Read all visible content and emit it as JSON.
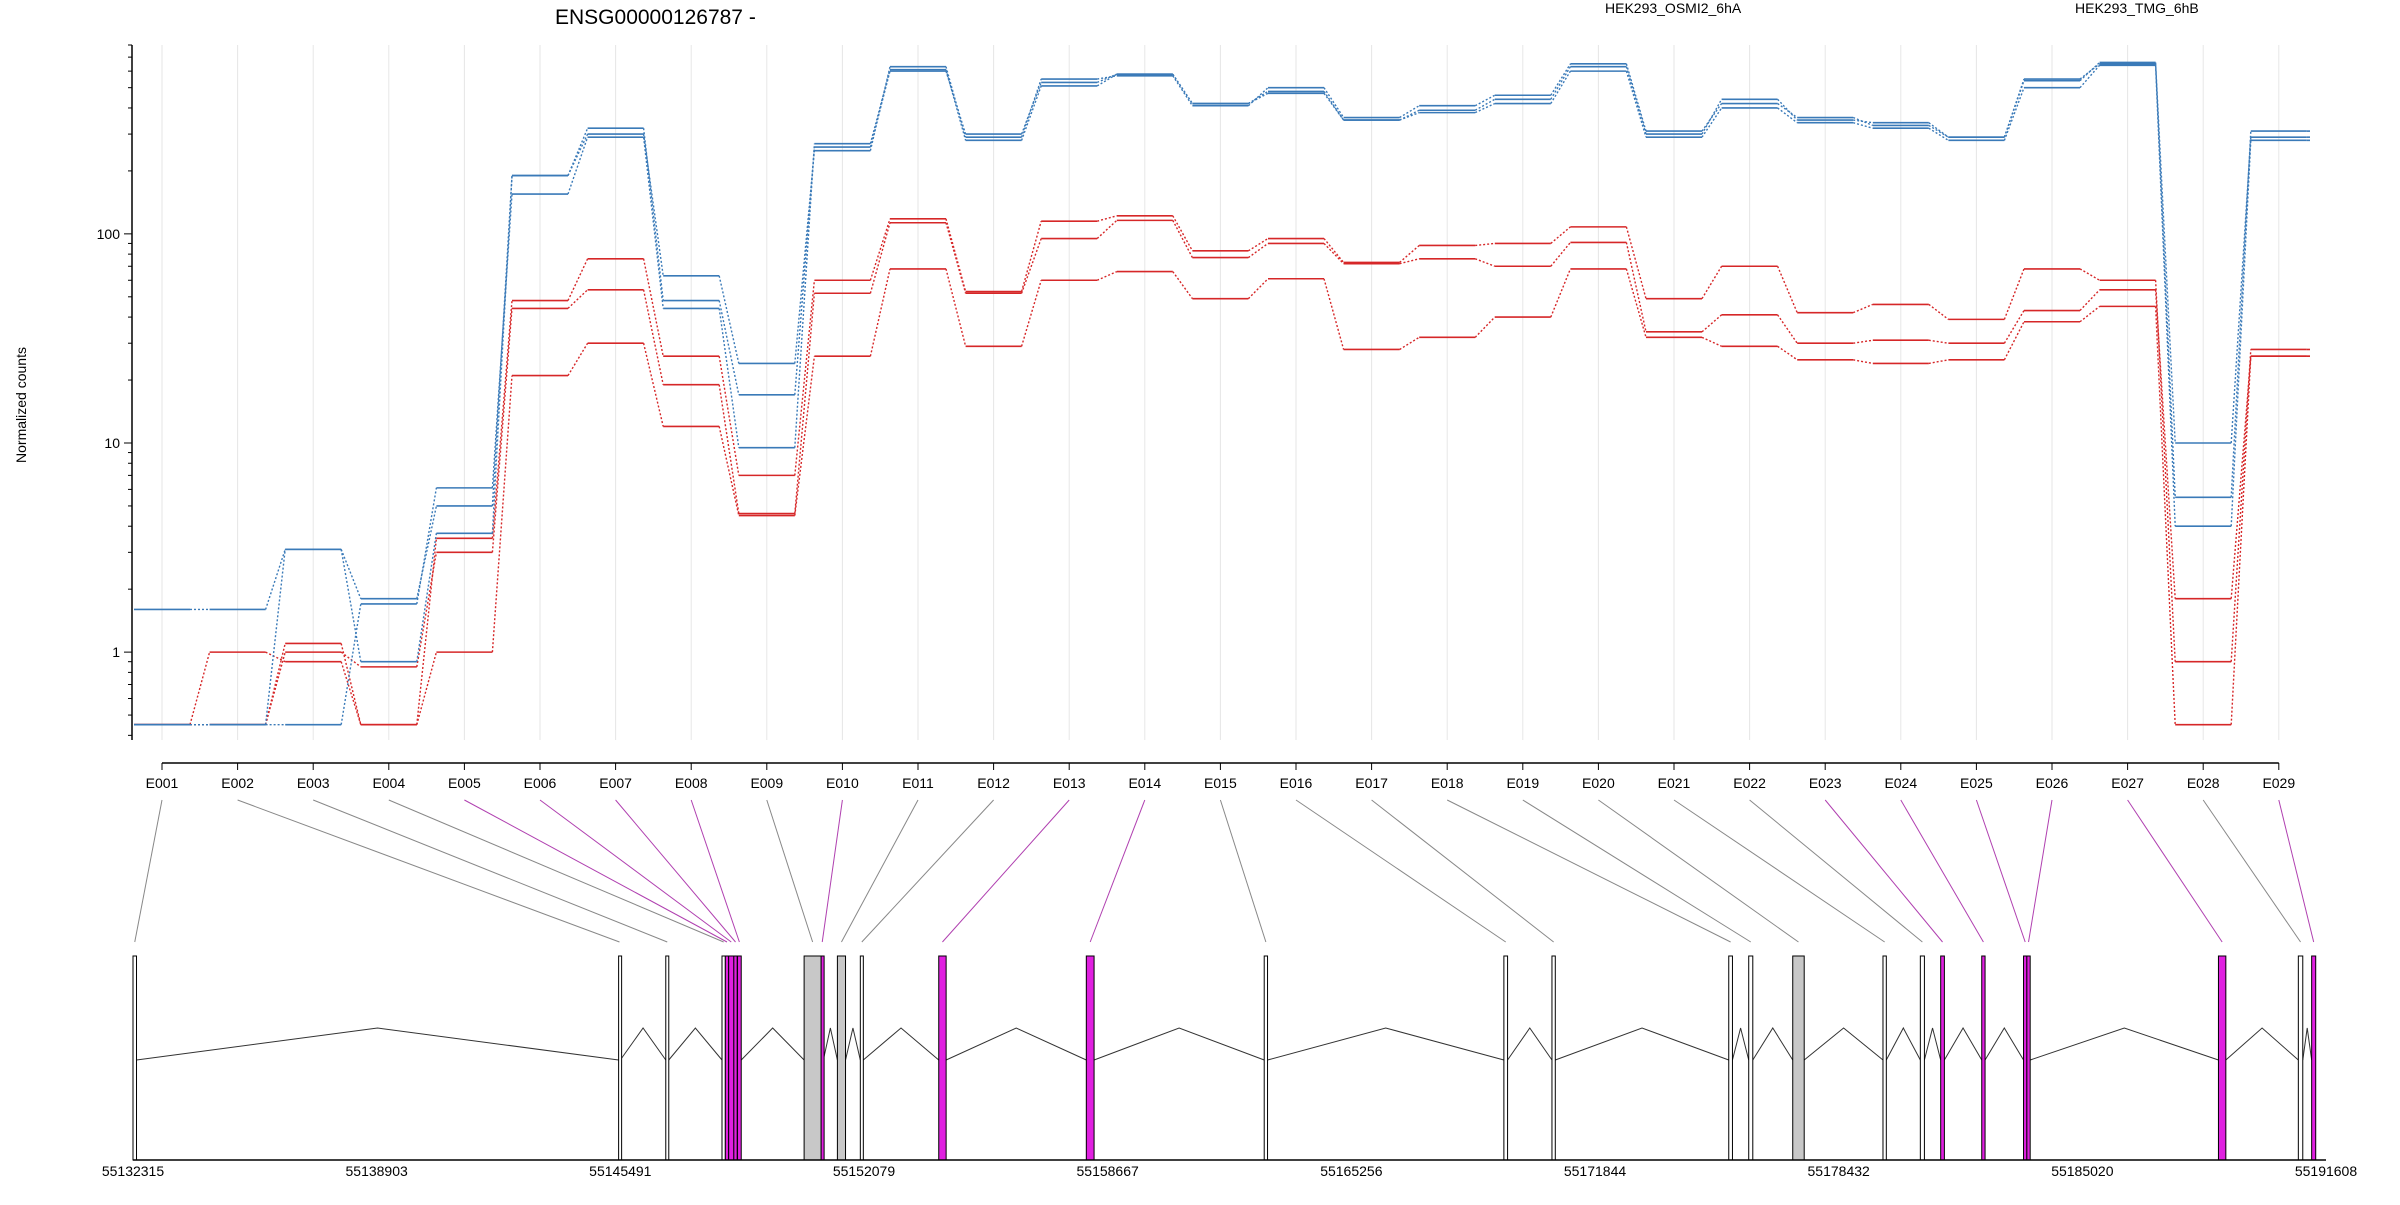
{
  "title": "ENSG00000126787 -",
  "ylabel": "Normalized counts",
  "legend": [
    {
      "name": "HEK293_OSMI2_6hA",
      "color": "#d62728"
    },
    {
      "name": "HEK293_TMG_6hB",
      "color": "#3a7ab8"
    }
  ],
  "chart_data": {
    "type": "line",
    "title": "ENSG00000126787 -",
    "ylabel": "Normalized counts",
    "yscale": "log",
    "ylim": [
      0.38,
      800
    ],
    "yticks": [
      {
        "value": 1,
        "label": "1"
      },
      {
        "value": 10,
        "label": "10"
      },
      {
        "value": 100,
        "label": "100"
      }
    ],
    "categories": [
      "E001",
      "E002",
      "E003",
      "E004",
      "E005",
      "E006",
      "E007",
      "E008",
      "E009",
      "E010",
      "E011",
      "E012",
      "E013",
      "E014",
      "E015",
      "E016",
      "E017",
      "E018",
      "E019",
      "E020",
      "E021",
      "E022",
      "E023",
      "E024",
      "E025",
      "E026",
      "E027",
      "E028",
      "E029"
    ],
    "series": [
      {
        "name": "HEK293_OSMI2_6hA",
        "color": "#d62728",
        "values": [
          0.45,
          1.0,
          0.9,
          0.45,
          1.0,
          21,
          30,
          12,
          4.5,
          26,
          68,
          29,
          60,
          66,
          49,
          61,
          28,
          32,
          40,
          68,
          32,
          29,
          25,
          24,
          25,
          38,
          45,
          0.45,
          26
        ]
      },
      {
        "name": "HEK293_OSMI2_6hA",
        "color": "#d62728",
        "values": [
          0.45,
          0.45,
          1.1,
          0.45,
          3.5,
          48,
          76,
          26,
          7.0,
          60,
          118,
          53,
          115,
          122,
          83,
          95,
          73,
          88,
          90,
          108,
          49,
          70,
          42,
          46,
          39,
          68,
          60,
          0.9,
          28
        ]
      },
      {
        "name": "HEK293_OSMI2_6hA",
        "color": "#d62728",
        "values": [
          0.45,
          0.45,
          1.0,
          0.85,
          3.0,
          44,
          54,
          19,
          4.6,
          52,
          113,
          52,
          95,
          116,
          77,
          90,
          72,
          76,
          70,
          91,
          34,
          41,
          30,
          31,
          30,
          43,
          54,
          1.8,
          26
        ]
      },
      {
        "name": "HEK293_TMG_6hB",
        "color": "#3a7ab8",
        "values": [
          1.6,
          1.6,
          3.1,
          1.8,
          5.0,
          190,
          320,
          48,
          17,
          260,
          600,
          300,
          530,
          580,
          420,
          480,
          350,
          390,
          440,
          630,
          300,
          440,
          350,
          340,
          290,
          540,
          660,
          5.5,
          310
        ]
      },
      {
        "name": "HEK293_TMG_6hB",
        "color": "#3a7ab8",
        "values": [
          0.45,
          0.45,
          3.1,
          0.9,
          3.7,
          190,
          300,
          63,
          24,
          250,
          630,
          290,
          550,
          570,
          410,
          500,
          360,
          410,
          460,
          650,
          310,
          420,
          360,
          330,
          290,
          550,
          650,
          10,
          290
        ]
      },
      {
        "name": "HEK293_TMG_6hB",
        "color": "#3a7ab8",
        "values": [
          0.45,
          0.45,
          0.45,
          1.7,
          6.1,
          155,
          290,
          44,
          9.5,
          270,
          610,
          280,
          510,
          580,
          420,
          470,
          350,
          380,
          420,
          600,
          290,
          400,
          340,
          320,
          280,
          500,
          640,
          4.0,
          280
        ]
      }
    ]
  },
  "gene_model": {
    "coordinate_labels": [
      "55132315",
      "55138903",
      "55145491",
      "55152079",
      "55158667",
      "55165256",
      "55171844",
      "55178432",
      "55185020",
      "55191608"
    ],
    "exons": [
      {
        "id": "E001",
        "start": 55132315,
        "end": 55132410,
        "fill": "#ffffff"
      },
      {
        "id": "E002",
        "start": 55145445,
        "end": 55145491,
        "fill": "#ffffff"
      },
      {
        "id": "E003",
        "start": 55146720,
        "end": 55146800,
        "fill": "#ffffff"
      },
      {
        "id": "E004",
        "start": 55148240,
        "end": 55148330,
        "fill": "#ffffff"
      },
      {
        "id": "E005",
        "start": 55148330,
        "end": 55148420,
        "fill": "#e020e0"
      },
      {
        "id": "E006",
        "start": 55148420,
        "end": 55148560,
        "fill": "#e020e0"
      },
      {
        "id": "E007",
        "start": 55148560,
        "end": 55148650,
        "fill": "#e020e0"
      },
      {
        "id": "E008",
        "start": 55148660,
        "end": 55148760,
        "fill": "#e020e0"
      },
      {
        "id": "E009",
        "start": 55150460,
        "end": 55150920,
        "fill": "#c8c8c8"
      },
      {
        "id": "E010",
        "start": 55150920,
        "end": 55150980,
        "fill": "#e020e0"
      },
      {
        "id": "E011",
        "start": 55151360,
        "end": 55151580,
        "fill": "#c8c8c8"
      },
      {
        "id": "E012",
        "start": 55151980,
        "end": 55152060,
        "fill": "#ffffff"
      },
      {
        "id": "E013",
        "start": 55154100,
        "end": 55154300,
        "fill": "#e020e0"
      },
      {
        "id": "E014",
        "start": 55158090,
        "end": 55158300,
        "fill": "#e020e0"
      },
      {
        "id": "E015",
        "start": 55162900,
        "end": 55162990,
        "fill": "#ffffff"
      },
      {
        "id": "E016",
        "start": 55169380,
        "end": 55169480,
        "fill": "#ffffff"
      },
      {
        "id": "E017",
        "start": 55170680,
        "end": 55170770,
        "fill": "#ffffff"
      },
      {
        "id": "E018",
        "start": 55175460,
        "end": 55175560,
        "fill": "#ffffff"
      },
      {
        "id": "E019",
        "start": 55176000,
        "end": 55176110,
        "fill": "#ffffff"
      },
      {
        "id": "E020",
        "start": 55177190,
        "end": 55177500,
        "fill": "#c8c8c8"
      },
      {
        "id": "E021",
        "start": 55179630,
        "end": 55179720,
        "fill": "#ffffff"
      },
      {
        "id": "E022",
        "start": 55180640,
        "end": 55180750,
        "fill": "#ffffff"
      },
      {
        "id": "E023",
        "start": 55181190,
        "end": 55181290,
        "fill": "#e020e0"
      },
      {
        "id": "E024",
        "start": 55182300,
        "end": 55182390,
        "fill": "#e020e0"
      },
      {
        "id": "E025",
        "start": 55183430,
        "end": 55183520,
        "fill": "#e020e0"
      },
      {
        "id": "E026",
        "start": 55183520,
        "end": 55183610,
        "fill": "#e020e0"
      },
      {
        "id": "E027",
        "start": 55188700,
        "end": 55188900,
        "fill": "#e020e0"
      },
      {
        "id": "E028",
        "start": 55190860,
        "end": 55190980,
        "fill": "#ffffff"
      },
      {
        "id": "E029",
        "start": 55191220,
        "end": 55191330,
        "fill": "#e020e0"
      }
    ]
  }
}
